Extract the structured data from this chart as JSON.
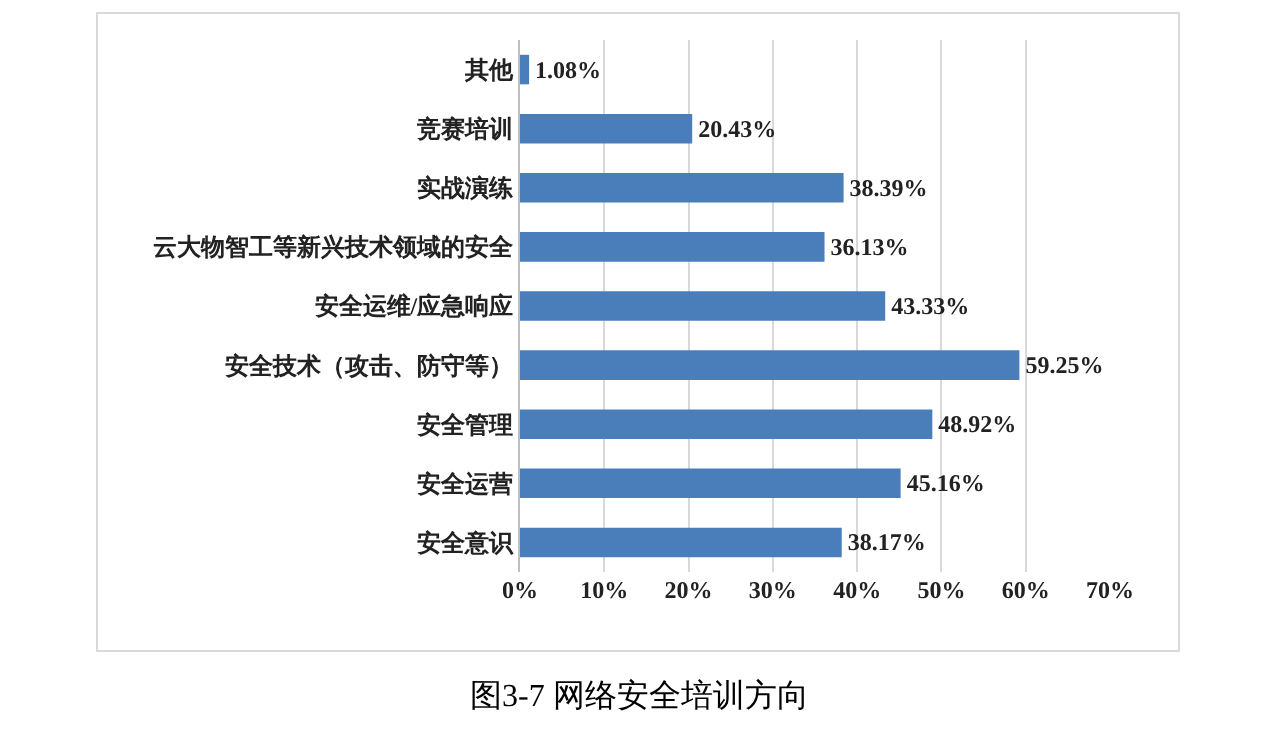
{
  "chart_data": {
    "type": "bar",
    "orientation": "horizontal",
    "categories": [
      "其他",
      "竞赛培训",
      "实战演练",
      "云大物智工等新兴技术领域的安全",
      "安全运维/应急响应",
      "安全技术（攻击、防守等）",
      "安全管理",
      "安全运营",
      "安全意识"
    ],
    "values": [
      1.08,
      20.43,
      38.39,
      36.13,
      43.33,
      59.25,
      48.92,
      45.16,
      38.17
    ],
    "value_labels": [
      "1.08%",
      "20.43%",
      "38.39%",
      "36.13%",
      "43.33%",
      "59.25%",
      "48.92%",
      "45.16%",
      "38.17%"
    ],
    "color": "#4a7ebb",
    "xlim": [
      0,
      70
    ],
    "xticks": [
      {
        "value": 0,
        "label": "0%"
      },
      {
        "value": 10,
        "label": "10%"
      },
      {
        "value": 20,
        "label": "20%"
      },
      {
        "value": 30,
        "label": "30%"
      },
      {
        "value": 40,
        "label": "40%"
      },
      {
        "value": 50,
        "label": "50%"
      },
      {
        "value": 60,
        "label": "60%"
      },
      {
        "value": 70,
        "label": "70%"
      }
    ],
    "grid": "x",
    "annotations": [
      "图3-7 网络安全培训方向"
    ]
  }
}
